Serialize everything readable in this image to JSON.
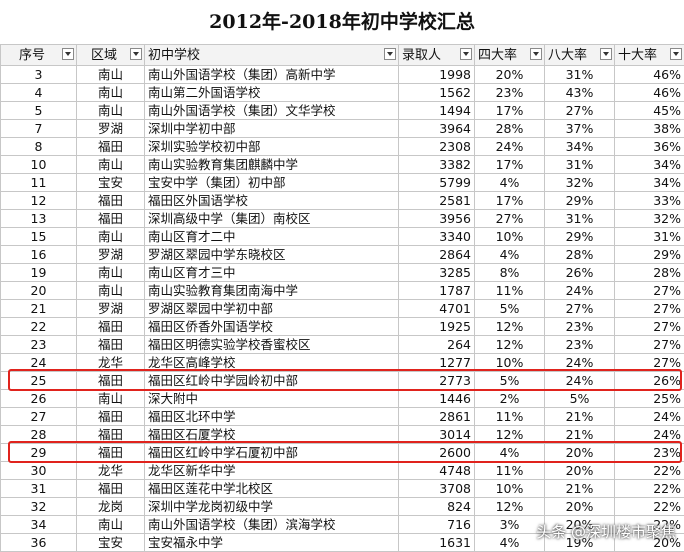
{
  "title": "2012年-2018年初中学校汇总",
  "columns": [
    "序号",
    "区域",
    "初中学校",
    "录取人",
    "四大率",
    "八大率",
    "十大率"
  ],
  "rows": [
    [
      "3",
      "南山",
      "南山外国语学校（集团）高新中学",
      "1998",
      "20%",
      "31%",
      "46%"
    ],
    [
      "4",
      "南山",
      "南山第二外国语学校",
      "1562",
      "23%",
      "43%",
      "46%"
    ],
    [
      "5",
      "南山",
      "南山外国语学校（集团）文华学校",
      "1494",
      "17%",
      "27%",
      "45%"
    ],
    [
      "7",
      "罗湖",
      "深圳中学初中部",
      "3964",
      "28%",
      "37%",
      "38%"
    ],
    [
      "8",
      "福田",
      "深圳实验学校初中部",
      "2308",
      "24%",
      "34%",
      "36%"
    ],
    [
      "10",
      "南山",
      "南山实验教育集团麒麟中学",
      "3382",
      "17%",
      "31%",
      "34%"
    ],
    [
      "11",
      "宝安",
      "宝安中学（集团）初中部",
      "5799",
      "4%",
      "32%",
      "34%"
    ],
    [
      "12",
      "福田",
      "福田区外国语学校",
      "2581",
      "17%",
      "29%",
      "33%"
    ],
    [
      "13",
      "福田",
      "深圳高级中学（集团）南校区",
      "3956",
      "27%",
      "31%",
      "32%"
    ],
    [
      "15",
      "南山",
      "南山区育才二中",
      "3340",
      "10%",
      "29%",
      "31%"
    ],
    [
      "16",
      "罗湖",
      "罗湖区翠园中学东晓校区",
      "2864",
      "4%",
      "28%",
      "29%"
    ],
    [
      "19",
      "南山",
      "南山区育才三中",
      "3285",
      "8%",
      "26%",
      "28%"
    ],
    [
      "20",
      "南山",
      "南山实验教育集团南海中学",
      "1787",
      "11%",
      "24%",
      "27%"
    ],
    [
      "21",
      "罗湖",
      "罗湖区翠园中学初中部",
      "4701",
      "5%",
      "27%",
      "27%"
    ],
    [
      "22",
      "福田",
      "福田区侨香外国语学校",
      "1925",
      "12%",
      "23%",
      "27%"
    ],
    [
      "23",
      "福田",
      "福田区明德实验学校香蜜校区",
      "264",
      "12%",
      "23%",
      "27%"
    ],
    [
      "24",
      "龙华",
      "龙华区高峰学校",
      "1277",
      "10%",
      "24%",
      "27%"
    ],
    [
      "25",
      "福田",
      "福田区红岭中学园岭初中部",
      "2773",
      "5%",
      "24%",
      "26%"
    ],
    [
      "26",
      "南山",
      "深大附中",
      "1446",
      "2%",
      "5%",
      "25%"
    ],
    [
      "27",
      "福田",
      "福田区北环中学",
      "2861",
      "11%",
      "21%",
      "24%"
    ],
    [
      "28",
      "福田",
      "福田区石厦学校",
      "3014",
      "12%",
      "21%",
      "24%"
    ],
    [
      "29",
      "福田",
      "福田区红岭中学石厦初中部",
      "2600",
      "4%",
      "20%",
      "23%"
    ],
    [
      "30",
      "龙华",
      "龙华区新华中学",
      "4748",
      "11%",
      "20%",
      "22%"
    ],
    [
      "31",
      "福田",
      "福田区莲花中学北校区",
      "3708",
      "10%",
      "21%",
      "22%"
    ],
    [
      "32",
      "龙岗",
      "深圳中学龙岗初级中学",
      "824",
      "12%",
      "20%",
      "22%"
    ],
    [
      "34",
      "南山",
      "南山外国语学校（集团）滨海学校",
      "716",
      "3%",
      "20%",
      "22%"
    ],
    [
      "36",
      "宝安",
      "宝安福永中学",
      "1631",
      "4%",
      "19%",
      "20%"
    ]
  ],
  "highlight_color": "#e0231d",
  "highlighted_row_numbers": [
    "25",
    "29"
  ],
  "watermark": "头条 @深圳楼市聚焦"
}
